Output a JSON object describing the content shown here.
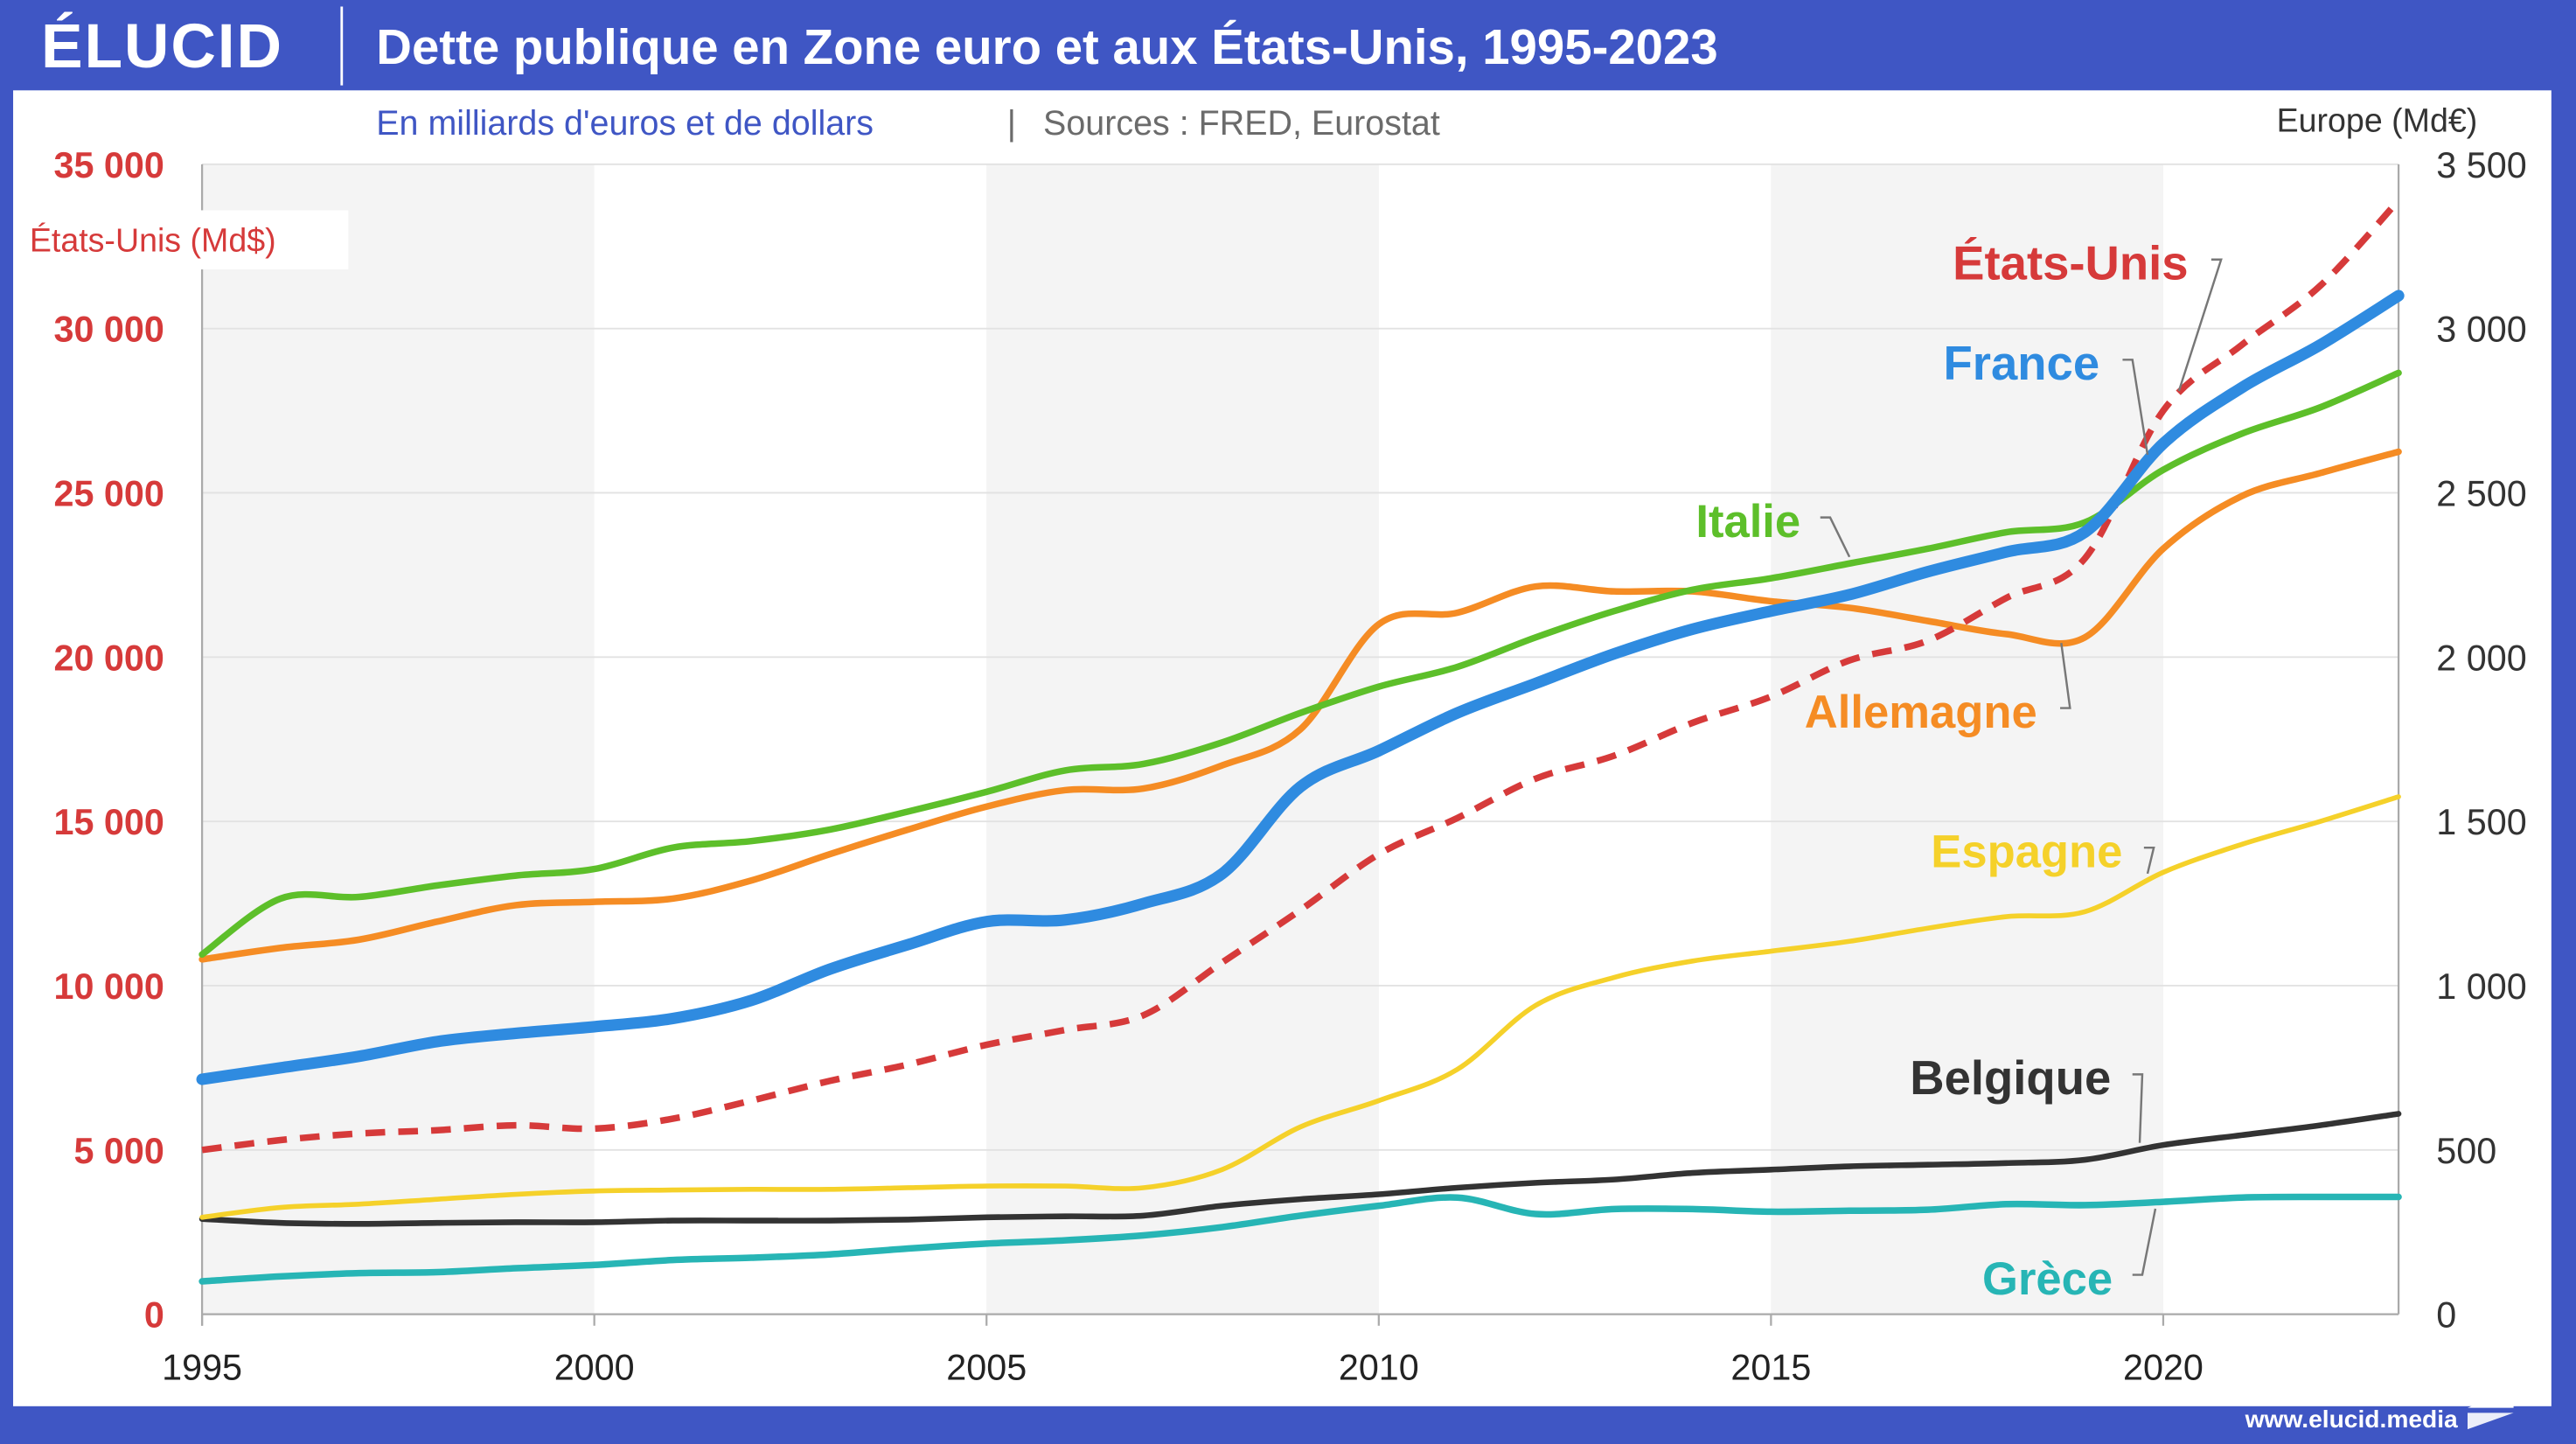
{
  "header": {
    "logo": "ÉLUCID",
    "title": "Dette publique en Zone euro et aux États-Unis, 1995-2023",
    "subtitle": "En milliards d'euros et de dollars",
    "separator": "|",
    "sources": "Sources : FRED, Eurostat"
  },
  "footer": {
    "url": "www.elucid.media"
  },
  "colors": {
    "frame": "#3f56c4",
    "usa": "#d63a3a",
    "france": "#2f8be0",
    "italie": "#5dbf2a",
    "allemagne": "#f58c24",
    "espagne": "#f5d12a",
    "belgique": "#333333",
    "grece": "#27b5b5"
  },
  "chart_data": {
    "type": "line",
    "title": "Dette publique en Zone euro et aux États-Unis, 1995-2023",
    "subtitle": "En milliards d'euros et de dollars",
    "xlabel": "",
    "ylabel_left": "États-Unis (Md$)",
    "ylabel_right": "Europe (Md€)",
    "ylim_left": [
      0,
      35000
    ],
    "ylim_right": [
      0,
      3500
    ],
    "xlim": [
      1995,
      2023
    ],
    "grid": true,
    "x_ticks": [
      "1995",
      "2000",
      "2005",
      "2010",
      "2015",
      "2020"
    ],
    "y_ticks_left": [
      "0",
      "5 000",
      "10 000",
      "15 000",
      "20 000",
      "25 000",
      "30 000",
      "35 000"
    ],
    "y_ticks_right": [
      "0",
      "500",
      "1 000",
      "1 500",
      "2 000",
      "2 500",
      "3 000",
      "3 500"
    ],
    "x": [
      1995,
      1996,
      1997,
      1998,
      1999,
      2000,
      2001,
      2002,
      2003,
      2004,
      2005,
      2006,
      2007,
      2008,
      2009,
      2010,
      2011,
      2012,
      2013,
      2014,
      2015,
      2016,
      2017,
      2018,
      2019,
      2020,
      2021,
      2022,
      2023
    ],
    "series": [
      {
        "key": "usa",
        "name": "États-Unis",
        "axis": "left",
        "dashed": true,
        "values": [
          5000,
          5300,
          5500,
          5600,
          5750,
          5650,
          5950,
          6500,
          7100,
          7600,
          8200,
          8650,
          9100,
          10700,
          12300,
          14000,
          15100,
          16300,
          17000,
          18000,
          18800,
          19900,
          20500,
          21800,
          23000,
          27500,
          29500,
          31300,
          33900
        ]
      },
      {
        "key": "france",
        "name": "France",
        "axis": "right",
        "values": [
          715,
          750,
          785,
          830,
          855,
          875,
          900,
          955,
          1050,
          1125,
          1195,
          1200,
          1250,
          1340,
          1605,
          1715,
          1830,
          1920,
          2010,
          2085,
          2140,
          2190,
          2260,
          2320,
          2380,
          2650,
          2820,
          2950,
          3100
        ]
      },
      {
        "key": "italie",
        "name": "Italie",
        "axis": "right",
        "values": [
          1095,
          1265,
          1270,
          1305,
          1335,
          1355,
          1420,
          1440,
          1475,
          1530,
          1590,
          1655,
          1675,
          1740,
          1830,
          1910,
          1970,
          2060,
          2140,
          2205,
          2240,
          2285,
          2330,
          2380,
          2410,
          2570,
          2680,
          2760,
          2865
        ]
      },
      {
        "key": "allemagne",
        "name": "Allemagne",
        "axis": "right",
        "values": [
          1080,
          1115,
          1140,
          1195,
          1245,
          1255,
          1265,
          1320,
          1400,
          1475,
          1545,
          1595,
          1600,
          1670,
          1780,
          2100,
          2135,
          2215,
          2200,
          2200,
          2170,
          2150,
          2110,
          2070,
          2060,
          2330,
          2490,
          2560,
          2625
        ]
      },
      {
        "key": "espagne",
        "name": "Espagne",
        "axis": "right",
        "values": [
          295,
          325,
          335,
          350,
          365,
          375,
          378,
          380,
          380,
          385,
          390,
          390,
          385,
          440,
          570,
          650,
          745,
          940,
          1025,
          1075,
          1105,
          1135,
          1175,
          1210,
          1225,
          1345,
          1430,
          1500,
          1575
        ]
      },
      {
        "key": "belgique",
        "name": "Belgique",
        "axis": "right",
        "values": [
          290,
          278,
          275,
          278,
          280,
          280,
          285,
          285,
          285,
          288,
          295,
          298,
          300,
          330,
          350,
          365,
          385,
          400,
          410,
          430,
          440,
          450,
          455,
          460,
          470,
          515,
          545,
          575,
          610
        ]
      },
      {
        "key": "grece",
        "name": "Grèce",
        "axis": "right",
        "values": [
          100,
          115,
          125,
          128,
          140,
          150,
          165,
          172,
          182,
          200,
          215,
          225,
          240,
          265,
          300,
          330,
          355,
          305,
          320,
          320,
          312,
          315,
          318,
          335,
          332,
          342,
          355,
          357,
          357
        ]
      }
    ],
    "labels": [
      {
        "key": "usa",
        "text": "États-Unis",
        "anchor_year": 2020.2
      },
      {
        "key": "france",
        "text": "France",
        "anchor_year": 2019.8
      },
      {
        "key": "italie",
        "text": "Italie",
        "anchor_year": 2016
      },
      {
        "key": "allemagne",
        "text": "Allemagne",
        "anchor_year": 2018.7
      },
      {
        "key": "espagne",
        "text": "Espagne",
        "anchor_year": 2019.8
      },
      {
        "key": "belgique",
        "text": "Belgique",
        "anchor_year": 2019.7
      },
      {
        "key": "grece",
        "text": "Grèce",
        "anchor_year": 2019.9
      }
    ]
  }
}
